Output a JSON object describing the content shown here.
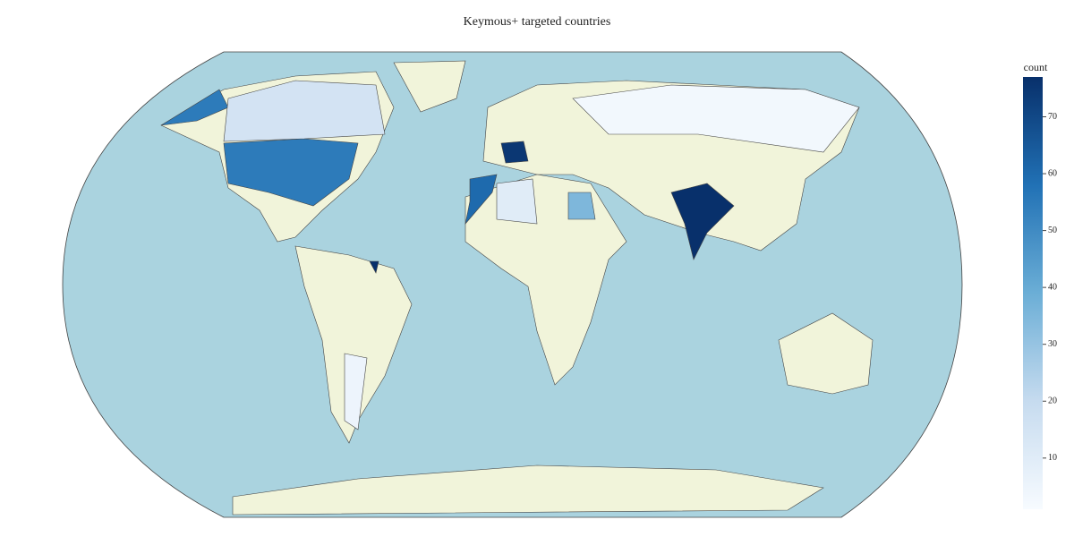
{
  "chart_data": {
    "type": "choropleth",
    "title": "Keymous+ targeted countries",
    "colorbar_title": "count",
    "values": [
      77,
      75,
      60,
      55,
      55,
      15,
      35,
      3,
      5,
      10,
      77
    ],
    "zlim": [
      1,
      77
    ],
    "zticks": [
      10,
      20,
      30,
      40,
      50,
      60,
      70
    ],
    "colorscale": [
      "#f7fbff",
      "#c6dbef",
      "#6baed6",
      "#2171b5",
      "#08306b"
    ],
    "ocean_color": "#aad3df",
    "land_color": "#f1f4da"
  }
}
